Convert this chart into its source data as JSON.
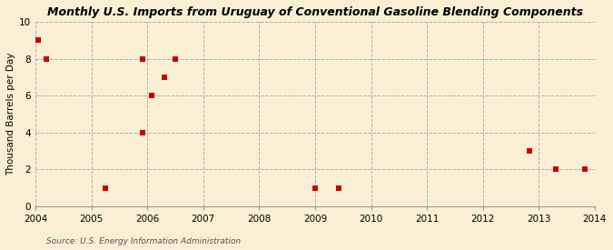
{
  "title": "Monthly U.S. Imports from Uruguay of Conventional Gasoline Blending Components",
  "ylabel": "Thousand Barrels per Day",
  "source": "Source: U.S. Energy Information Administration",
  "background_color": "#faefd4",
  "plot_bg_color": "#faefd4",
  "grid_color": "#aaaaaa",
  "scatter_color": "#cc0000",
  "xlim": [
    2004,
    2014
  ],
  "ylim": [
    0,
    10
  ],
  "xticks": [
    2004,
    2005,
    2006,
    2007,
    2008,
    2009,
    2010,
    2011,
    2012,
    2013,
    2014
  ],
  "yticks": [
    0,
    2,
    4,
    6,
    8,
    10
  ],
  "data_x": [
    2004.05,
    2004.2,
    2005.25,
    2005.92,
    2005.92,
    2006.08,
    2006.3,
    2006.5,
    2009.0,
    2009.42,
    2012.83,
    2013.3,
    2013.83
  ],
  "data_y": [
    9,
    8,
    1,
    8,
    4,
    6,
    7,
    8,
    1,
    1,
    3,
    2,
    2
  ],
  "marker_size": 18
}
